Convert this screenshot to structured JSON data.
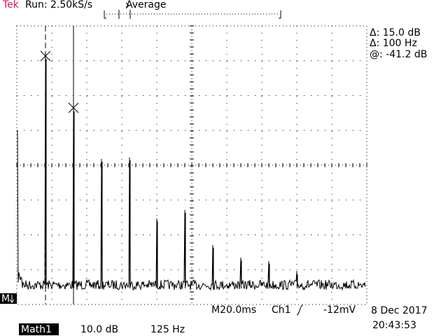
{
  "header": {
    "brand": "Tek",
    "run": "Run: 2.50kS/s",
    "mode": "Average"
  },
  "readout": {
    "delta_db": "Δ: 15.0 dB",
    "delta_hz": "Δ: 100 Hz",
    "at": "@: -41.2 dB"
  },
  "marker": "M",
  "status": {
    "timebase": "M20.0ms",
    "channel": "Ch1",
    "trigger": "-12mV",
    "date": "8 Dec 2017",
    "time": "20:43:53"
  },
  "math": {
    "label": "Math1",
    "scale": "10.0 dB",
    "span": "125 Hz"
  }
}
